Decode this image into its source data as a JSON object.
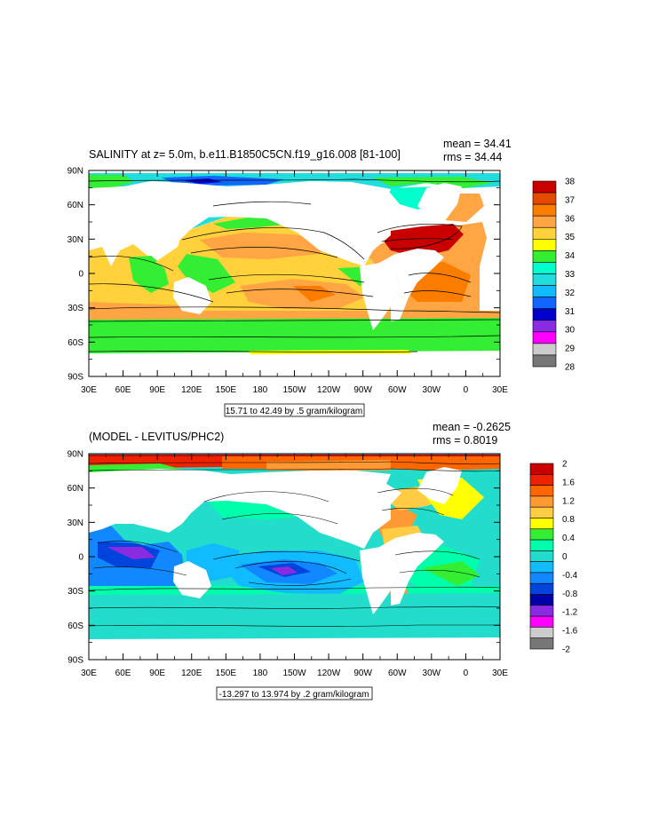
{
  "panels": [
    {
      "title": "SALINITY at z=   5.0m, b.e11.B1850C5CN.f19_g16.008 [81-100]",
      "mean": "mean = 34.41",
      "rms": "rms = 34.44",
      "info": "15.71 to 42.49 by .5 gram/kilogram",
      "lat_labels": [
        "90N",
        "60N",
        "30N",
        "0",
        "30S",
        "60S",
        "90S"
      ],
      "lon_labels": [
        "30E",
        "60E",
        "90E",
        "120E",
        "150E",
        "180",
        "150W",
        "120W",
        "90W",
        "60W",
        "30W",
        "0",
        "30E"
      ],
      "colorbar_labels": [
        "38",
        "37",
        "36",
        "35",
        "34",
        "33",
        "32",
        "31",
        "30",
        "29",
        "28"
      ],
      "colorbar_colors": [
        "#c80000",
        "#e64a00",
        "#fa7d00",
        "#ffa544",
        "#ffd23c",
        "#ffff00",
        "#33ee33",
        "#00ffcc",
        "#22dddd",
        "#11bbff",
        "#1166ff",
        "#0000cc",
        "#8a2be2",
        "#ff00ff",
        "#cccccc",
        "#777777"
      ]
    },
    {
      "title": "(MODEL - LEVITUS/PHC2)",
      "mean": "mean = -0.2625",
      "rms": "rms = 0.8019",
      "info": "-13.297 to 13.974 by .2 gram/kilogram",
      "lat_labels": [
        "90N",
        "60N",
        "30N",
        "0",
        "30S",
        "60S",
        "90S"
      ],
      "lon_labels": [
        "30E",
        "60E",
        "90E",
        "120E",
        "150E",
        "180",
        "150W",
        "120W",
        "90W",
        "60W",
        "30W",
        "0",
        "30E"
      ],
      "colorbar_labels": [
        "2",
        "1.6",
        "1.2",
        "0.8",
        "0.4",
        "0",
        "-0.4",
        "-0.8",
        "-1.2",
        "-1.6",
        "-2"
      ],
      "colorbar_colors": [
        "#c80000",
        "#ee2200",
        "#ff6600",
        "#ff9933",
        "#ffcc44",
        "#ffff00",
        "#33ee33",
        "#00ffaa",
        "#22ddcc",
        "#11bbff",
        "#1188ff",
        "#0044dd",
        "#0000aa",
        "#8a2be2",
        "#ff00ff",
        "#cccccc",
        "#777777"
      ]
    }
  ]
}
